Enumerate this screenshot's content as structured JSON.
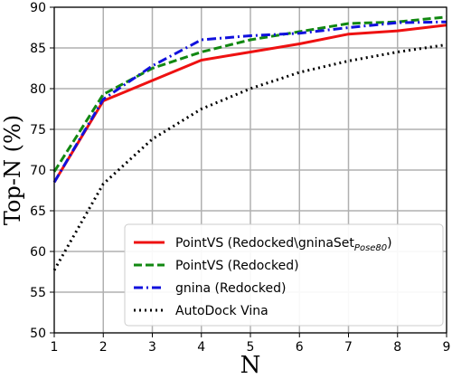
{
  "chart_data": {
    "type": "line",
    "xlabel": "N",
    "ylabel": "Top-N (%)",
    "xlim": [
      1,
      9
    ],
    "ylim": [
      50,
      90
    ],
    "xticks": [
      1,
      2,
      3,
      4,
      5,
      6,
      7,
      8,
      9
    ],
    "yticks": [
      50,
      55,
      60,
      65,
      70,
      75,
      80,
      85,
      90
    ],
    "grid": true,
    "legend_position": "lower-right",
    "x": [
      1,
      2,
      3,
      4,
      5,
      6,
      7,
      8,
      9
    ],
    "series": [
      {
        "name": "PointVS (Redocked\\gninaSet",
        "name_sub": "Pose80",
        "name_suffix": ")",
        "color": "#ee1111",
        "dash": "solid",
        "values": [
          68.5,
          78.5,
          81.0,
          83.5,
          84.5,
          85.5,
          86.7,
          87.1,
          87.8
        ]
      },
      {
        "name": "PointVS (Redocked)",
        "color": "#118811",
        "dash": "dashed",
        "values": [
          69.8,
          79.3,
          82.5,
          84.5,
          86.0,
          87.0,
          88.0,
          88.2,
          88.8
        ]
      },
      {
        "name": "gnina (Redocked)",
        "color": "#1111dd",
        "dash": "dashdot",
        "values": [
          68.5,
          78.7,
          82.8,
          86.0,
          86.5,
          86.8,
          87.5,
          88.1,
          88.2
        ]
      },
      {
        "name": "AutoDock Vina",
        "color": "#000000",
        "dash": "dotted",
        "values": [
          57.7,
          68.3,
          73.8,
          77.5,
          80.0,
          82.0,
          83.4,
          84.5,
          85.4
        ]
      }
    ]
  }
}
